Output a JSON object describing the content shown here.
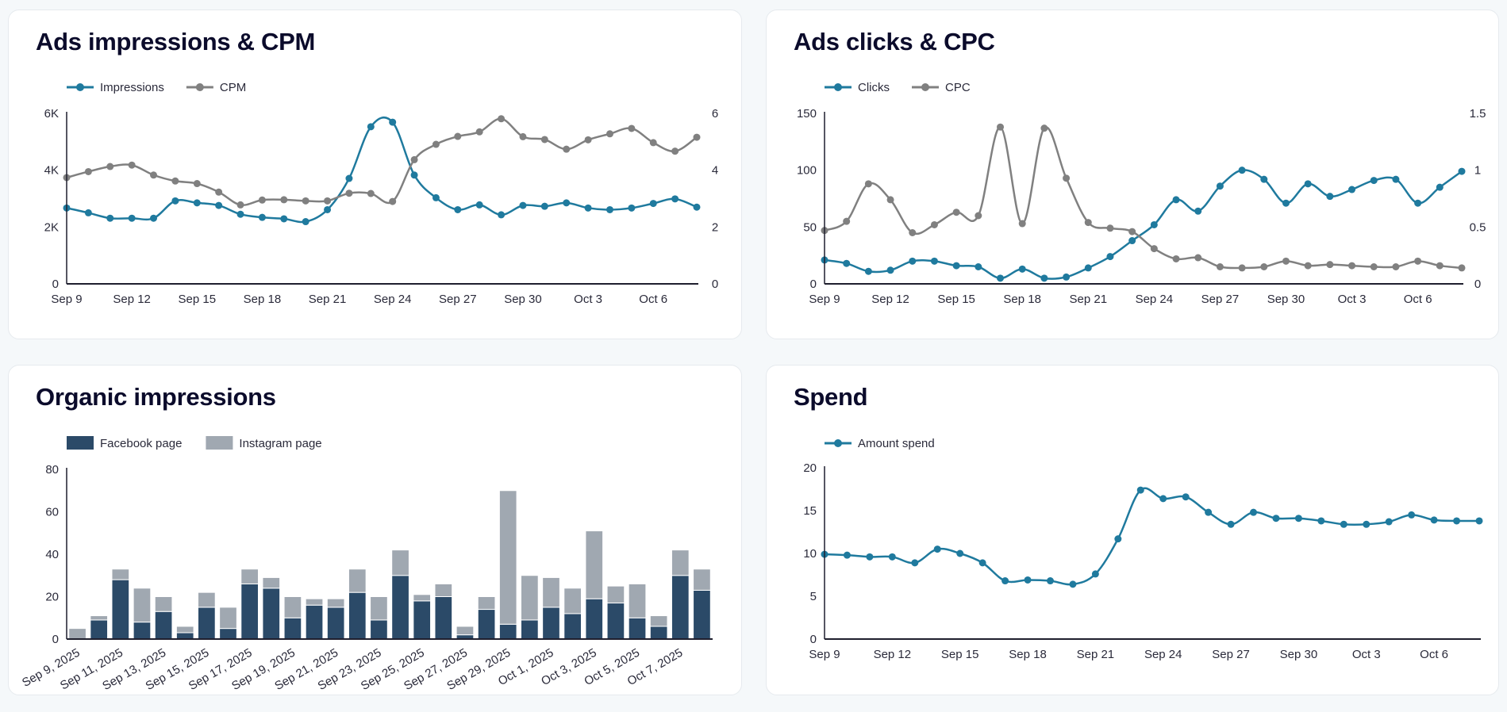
{
  "colors": {
    "blue": "#1f7a9e",
    "gray": "#808080",
    "facebook": "#2b4a68",
    "instagram": "#a0a8b1",
    "title": "#0b0b2b"
  },
  "chart_data": [
    {
      "id": "ads-impressions",
      "type": "line",
      "title": "Ads impressions & CPM",
      "legend_placement": "top-left",
      "x_ticks": [
        "Sep 9",
        "Sep 12",
        "Sep 15",
        "Sep 18",
        "Sep 21",
        "Sep 24",
        "Sep 27",
        "Sep 30",
        "Oct 3",
        "Oct 6"
      ],
      "x": [
        "Sep 9",
        "Sep 10",
        "Sep 11",
        "Sep 12",
        "Sep 13",
        "Sep 14",
        "Sep 15",
        "Sep 16",
        "Sep 17",
        "Sep 18",
        "Sep 19",
        "Sep 20",
        "Sep 21",
        "Sep 22",
        "Sep 23",
        "Sep 24",
        "Sep 25",
        "Sep 26",
        "Sep 27",
        "Sep 28",
        "Sep 29",
        "Sep 30",
        "Oct 1",
        "Oct 2",
        "Oct 3",
        "Oct 4",
        "Oct 5",
        "Oct 6",
        "Oct 7",
        "Oct 8"
      ],
      "y_left": {
        "ticks": [
          "0",
          "2K",
          "4K",
          "6K"
        ],
        "ylim": [
          0,
          6000
        ]
      },
      "y_right": {
        "ticks": [
          "0",
          "2",
          "4",
          "6"
        ],
        "ylim": [
          0,
          6
        ]
      },
      "series": [
        {
          "name": "Impressions",
          "axis": "left",
          "color": "#1f7a9e",
          "values": [
            2670,
            2500,
            2310,
            2310,
            2310,
            2920,
            2850,
            2760,
            2450,
            2340,
            2290,
            2190,
            2610,
            3710,
            5530,
            5690,
            3830,
            3030,
            2610,
            2780,
            2430,
            2760,
            2730,
            2850,
            2670,
            2610,
            2670,
            2830,
            2990,
            2700
          ]
        },
        {
          "name": "CPM",
          "axis": "right",
          "color": "#808080",
          "values": [
            3.74,
            3.95,
            4.13,
            4.18,
            3.83,
            3.62,
            3.53,
            3.23,
            2.78,
            2.95,
            2.96,
            2.92,
            2.92,
            3.19,
            3.18,
            2.9,
            4.37,
            4.91,
            5.19,
            5.35,
            5.81,
            5.18,
            5.08,
            4.74,
            5.07,
            5.28,
            5.47,
            4.97,
            4.67,
            5.16
          ]
        }
      ]
    },
    {
      "id": "ads-clicks",
      "type": "line",
      "title": "Ads clicks & CPC",
      "legend_placement": "top-left",
      "x_ticks": [
        "Sep 9",
        "Sep 12",
        "Sep 15",
        "Sep 18",
        "Sep 21",
        "Sep 24",
        "Sep 27",
        "Sep 30",
        "Oct 3",
        "Oct 6"
      ],
      "x": [
        "Sep 9",
        "Sep 10",
        "Sep 11",
        "Sep 12",
        "Sep 13",
        "Sep 14",
        "Sep 15",
        "Sep 16",
        "Sep 17",
        "Sep 18",
        "Sep 19",
        "Sep 20",
        "Sep 21",
        "Sep 22",
        "Sep 23",
        "Sep 24",
        "Sep 25",
        "Sep 26",
        "Sep 27",
        "Sep 28",
        "Sep 29",
        "Sep 30",
        "Oct 1",
        "Oct 2",
        "Oct 3",
        "Oct 4",
        "Oct 5",
        "Oct 6",
        "Oct 7",
        "Oct 8"
      ],
      "y_left": {
        "ticks": [
          "0",
          "50",
          "100",
          "150"
        ],
        "ylim": [
          0,
          150
        ]
      },
      "y_right": {
        "ticks": [
          "0",
          "0.5",
          "1",
          "1.5"
        ],
        "ylim": [
          0,
          1.5
        ]
      },
      "series": [
        {
          "name": "Clicks",
          "axis": "left",
          "color": "#1f7a9e",
          "values": [
            21,
            18,
            11,
            12,
            20,
            20,
            16,
            15,
            5,
            13,
            5,
            6,
            14,
            24,
            38,
            52,
            74,
            64,
            86,
            100,
            92,
            71,
            88,
            77,
            83,
            91,
            92,
            71,
            85,
            99
          ]
        },
        {
          "name": "CPC",
          "axis": "right",
          "color": "#808080",
          "values": [
            0.47,
            0.55,
            0.88,
            0.74,
            0.45,
            0.52,
            0.63,
            0.6,
            1.38,
            0.53,
            1.37,
            0.93,
            0.54,
            0.49,
            0.46,
            0.31,
            0.22,
            0.23,
            0.15,
            0.14,
            0.15,
            0.2,
            0.16,
            0.17,
            0.16,
            0.15,
            0.15,
            0.2,
            0.16,
            0.14
          ]
        }
      ]
    },
    {
      "id": "organic-impressions",
      "type": "bar",
      "stacked": true,
      "title": "Organic impressions",
      "legend_placement": "top-left",
      "x_ticks": [
        "Sep 9, 2025",
        "Sep 11, 2025",
        "Sep 13, 2025",
        "Sep 15, 2025",
        "Sep 17, 2025",
        "Sep 19, 2025",
        "Sep 21, 2025",
        "Sep 23, 2025",
        "Sep 25, 2025",
        "Sep 27, 2025",
        "Sep 29, 2025",
        "Oct 1, 2025",
        "Oct 3, 2025",
        "Oct 5, 2025",
        "Oct 7, 2025"
      ],
      "categories": [
        "Sep 9, 2025",
        "Sep 10, 2025",
        "Sep 11, 2025",
        "Sep 12, 2025",
        "Sep 13, 2025",
        "Sep 14, 2025",
        "Sep 15, 2025",
        "Sep 16, 2025",
        "Sep 17, 2025",
        "Sep 18, 2025",
        "Sep 19, 2025",
        "Sep 20, 2025",
        "Sep 21, 2025",
        "Sep 22, 2025",
        "Sep 23, 2025",
        "Sep 24, 2025",
        "Sep 25, 2025",
        "Sep 26, 2025",
        "Sep 27, 2025",
        "Sep 28, 2025",
        "Sep 29, 2025",
        "Sep 30, 2025",
        "Oct 1, 2025",
        "Oct 2, 2025",
        "Oct 3, 2025",
        "Oct 4, 2025",
        "Oct 5, 2025",
        "Oct 6, 2025",
        "Oct 7, 2025",
        "Oct 8, 2025"
      ],
      "y_left": {
        "ticks": [
          "0",
          "20",
          "40",
          "60",
          "80"
        ],
        "ylim": [
          0,
          80
        ]
      },
      "series": [
        {
          "name": "Facebook page",
          "color": "#2b4a68",
          "values": [
            0,
            9,
            28,
            8,
            13,
            3,
            15,
            5,
            26,
            24,
            10,
            16,
            15,
            22,
            9,
            30,
            18,
            20,
            2,
            14,
            7,
            9,
            15,
            12,
            19,
            17,
            10,
            6,
            30,
            23
          ]
        },
        {
          "name": "Instagram page",
          "color": "#a0a8b1",
          "values": [
            5,
            2,
            5,
            16,
            7,
            3,
            7,
            10,
            7,
            5,
            10,
            3,
            4,
            11,
            11,
            12,
            3,
            6,
            4,
            6,
            63,
            21,
            14,
            12,
            32,
            8,
            16,
            5,
            12,
            10
          ]
        }
      ]
    },
    {
      "id": "spend",
      "type": "line",
      "title": "Spend",
      "legend_placement": "top-left",
      "x_ticks": [
        "Sep 9",
        "Sep 12",
        "Sep 15",
        "Sep 18",
        "Sep 21",
        "Sep 24",
        "Sep 27",
        "Sep 30",
        "Oct 3",
        "Oct 6"
      ],
      "x": [
        "Sep 9",
        "Sep 10",
        "Sep 11",
        "Sep 12",
        "Sep 13",
        "Sep 14",
        "Sep 15",
        "Sep 16",
        "Sep 17",
        "Sep 18",
        "Sep 19",
        "Sep 20",
        "Sep 21",
        "Sep 22",
        "Sep 23",
        "Sep 24",
        "Sep 25",
        "Sep 26",
        "Sep 27",
        "Sep 28",
        "Sep 29",
        "Sep 30",
        "Oct 1",
        "Oct 2",
        "Oct 3",
        "Oct 4",
        "Oct 5",
        "Oct 6",
        "Oct 7",
        "Oct 8"
      ],
      "y_left": {
        "ticks": [
          "0",
          "5",
          "10",
          "15",
          "20"
        ],
        "ylim": [
          0,
          20
        ]
      },
      "series": [
        {
          "name": "Amount spend",
          "axis": "left",
          "color": "#1f7a9e",
          "values": [
            9.9,
            9.8,
            9.6,
            9.6,
            8.9,
            10.5,
            10.0,
            8.9,
            6.8,
            6.9,
            6.8,
            6.4,
            7.6,
            11.7,
            17.4,
            16.4,
            16.6,
            14.8,
            13.4,
            14.8,
            14.1,
            14.1,
            13.8,
            13.4,
            13.4,
            13.7,
            14.5,
            13.9,
            13.8,
            13.8
          ]
        }
      ]
    }
  ]
}
